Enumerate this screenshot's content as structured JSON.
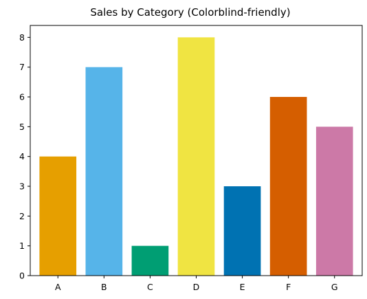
{
  "chart_data": {
    "type": "bar",
    "title": "Sales by Category (Colorblind-friendly)",
    "xlabel": "",
    "ylabel": "",
    "categories": [
      "A",
      "B",
      "C",
      "D",
      "E",
      "F",
      "G"
    ],
    "values": [
      4,
      7,
      1,
      8,
      3,
      6,
      5
    ],
    "colors": [
      "#E69F00",
      "#56B4E9",
      "#009E73",
      "#F0E442",
      "#0072B2",
      "#D55E00",
      "#CC79A7"
    ],
    "ylim": [
      0,
      8.4
    ],
    "yticks": [
      0,
      1,
      2,
      3,
      4,
      5,
      6,
      7,
      8
    ],
    "grid": false,
    "legend": "none"
  }
}
